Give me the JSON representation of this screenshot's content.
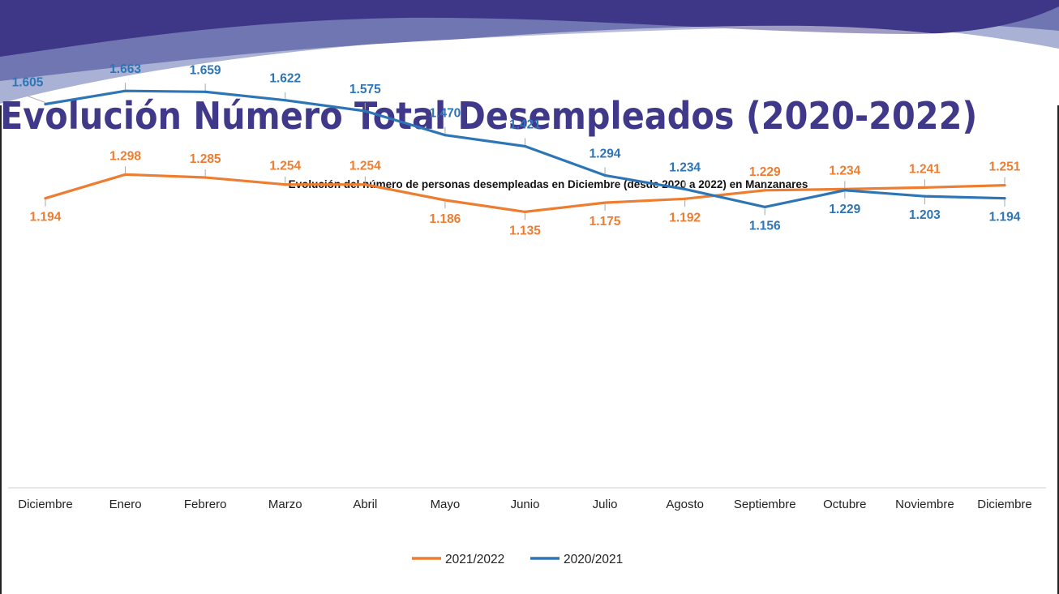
{
  "page_title": "Evolución Número Total Desempleados (2020-2022)",
  "colors": {
    "banner_dark": "#3e3686",
    "banner_mid": "#6e74b0",
    "banner_light": "#9aa3cc",
    "title": "#403888",
    "series_2021_2022": "#ed7d31",
    "series_2020_2021": "#2e75b6"
  },
  "chart_data": {
    "type": "line",
    "title": "Evolución del número de personas desempleadas en Diciembre (desde 2020 a 2022) en Manzanares",
    "categories": [
      "Diciembre",
      "Enero",
      "Febrero",
      "Marzo",
      "Abril",
      "Mayo",
      "Junio",
      "Julio",
      "Agosto",
      "Septiembre",
      "Octubre",
      "Noviembre",
      "Diciembre"
    ],
    "series": [
      {
        "name": "2021/2022",
        "color": "#ed7d31",
        "values": [
          1194,
          1298,
          1285,
          1254,
          1254,
          1186,
          1135,
          1175,
          1192,
          1229,
          1234,
          1241,
          1251
        ],
        "labels": [
          "1.194",
          "1.298",
          "1.285",
          "1.254",
          "1.254",
          "1.186",
          "1.135",
          "1.175",
          "1.192",
          "1.229",
          "1.234",
          "1.241",
          "1.251"
        ]
      },
      {
        "name": "2020/2021",
        "color": "#2e75b6",
        "values": [
          1605,
          1663,
          1659,
          1622,
          1575,
          1470,
          1421,
          1294,
          1234,
          1156,
          1229,
          1203,
          1194
        ],
        "labels": [
          "1.605",
          "1.663",
          "1.659",
          "1.622",
          "1.575",
          "1.470",
          "1.421",
          "1.294",
          "1.234",
          "1.156",
          "1.229",
          "1.203",
          "1.194"
        ]
      }
    ],
    "legend_position": "bottom",
    "grid": false
  }
}
